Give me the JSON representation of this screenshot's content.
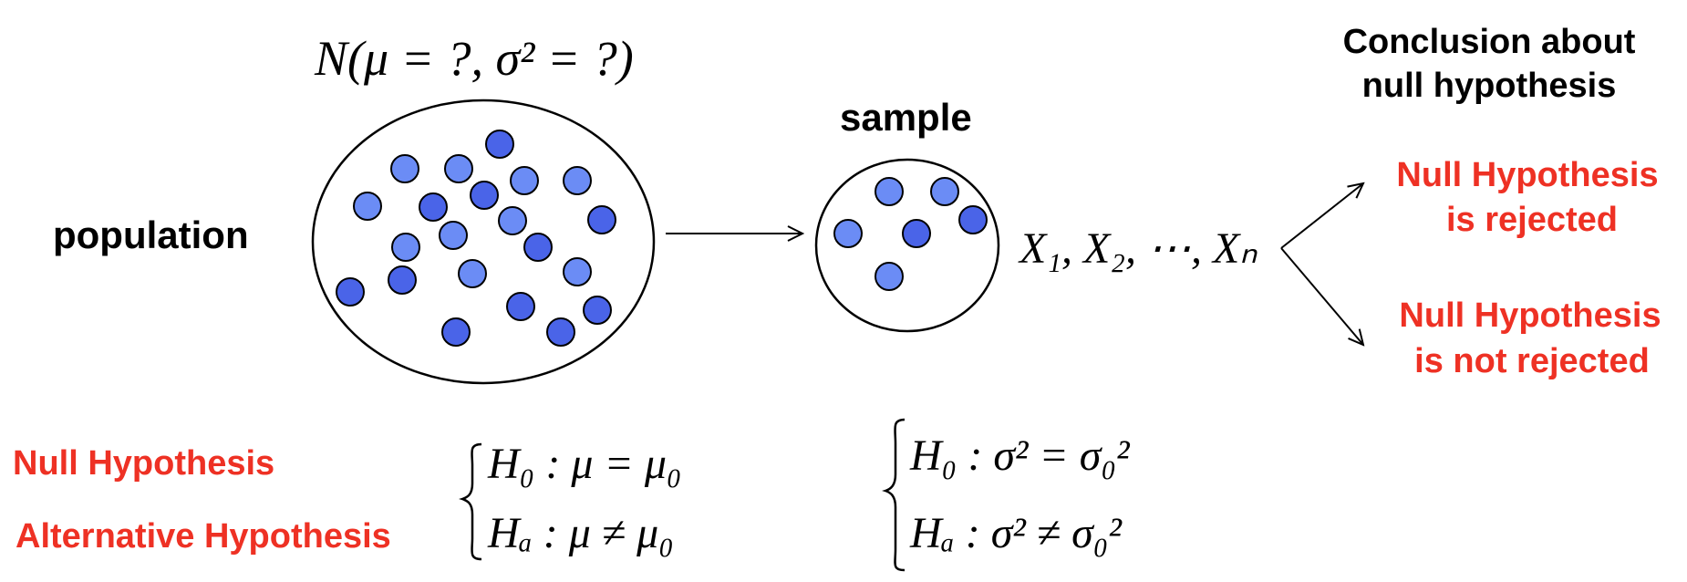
{
  "labels": {
    "population": "population",
    "sample": "sample",
    "conclusion_line1": "Conclusion about",
    "conclusion_line2": "null hypothesis",
    "rejected_line1": "Null Hypothesis",
    "rejected_line2": "is rejected",
    "not_rejected_line1": "Null Hypothesis",
    "not_rejected_line2": "is not rejected",
    "null_hypothesis": "Null Hypothesis",
    "alternative_hypothesis": "Alternative Hypothesis"
  },
  "formulas": {
    "population_dist": "N(μ = ?, σ² = ?)",
    "sample_vars": "X₁, X₂, ⋯, Xₙ",
    "mean_null": "H₀ : μ = μ₀",
    "mean_alt": "Hₐ : μ ≠ μ₀",
    "var_null": "H₀ : σ² = σ₀²",
    "var_alt": "Hₐ : σ² ≠ σ₀²"
  },
  "colors": {
    "accent_red": "#ee3124",
    "dot_light": "#6b8cf5",
    "dot_dark": "#4a64e8",
    "stroke": "#000000"
  },
  "sample_size_dots": 6,
  "population_dots": 23
}
